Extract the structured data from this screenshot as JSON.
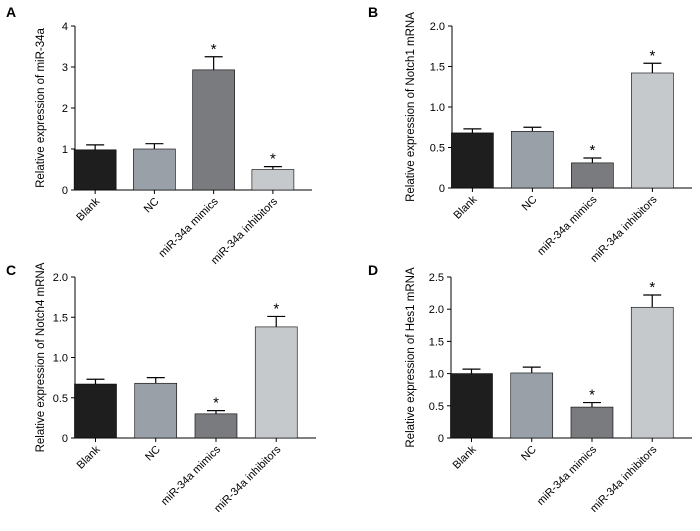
{
  "chart_data": [
    {
      "panel": "A",
      "type": "bar",
      "ylabel": "Relative expression of miR-34a",
      "categories": [
        "Blank",
        "NC",
        "miR-34a mimics",
        "miR-34a inhibitors"
      ],
      "values": [
        0.98,
        1.0,
        2.93,
        0.5
      ],
      "errors": [
        0.12,
        0.13,
        0.32,
        0.07
      ],
      "significant": [
        "",
        "",
        "*",
        "*"
      ],
      "ylim": [
        0,
        4
      ],
      "yticks": [
        "0",
        "1",
        "2",
        "3",
        "4"
      ],
      "colors": [
        "#1f1e1e",
        "#9aa0a8",
        "#7a7b7f",
        "#c6c9cc"
      ]
    },
    {
      "panel": "B",
      "type": "bar",
      "ylabel": "Relative expression of Notch1 mRNA",
      "categories": [
        "Blank",
        "NC",
        "miR-34a mimics",
        "miR-34a inhibitors"
      ],
      "values": [
        0.68,
        0.7,
        0.31,
        1.42
      ],
      "errors": [
        0.05,
        0.05,
        0.06,
        0.12
      ],
      "significant": [
        "",
        "",
        "*",
        "*"
      ],
      "ylim": [
        0,
        2
      ],
      "yticks": [
        "0",
        "0.5",
        "1.0",
        "1.5",
        "2.0"
      ],
      "colors": [
        "#1f1e1e",
        "#9aa0a8",
        "#7a7b7f",
        "#c6c9cc"
      ]
    },
    {
      "panel": "C",
      "type": "bar",
      "ylabel": "Relative expression of Notch4 mRNA",
      "categories": [
        "Blank",
        "NC",
        "miR-34a mimics",
        "miR-34a inhibitors"
      ],
      "values": [
        0.67,
        0.68,
        0.3,
        1.38
      ],
      "errors": [
        0.06,
        0.07,
        0.04,
        0.13
      ],
      "significant": [
        "",
        "",
        "*",
        "*"
      ],
      "ylim": [
        0,
        2
      ],
      "yticks": [
        "0",
        "0.5",
        "1.0",
        "1.5",
        "2.0"
      ],
      "colors": [
        "#1f1e1e",
        "#9aa0a8",
        "#7a7b7f",
        "#c6c9cc"
      ]
    },
    {
      "panel": "D",
      "type": "bar",
      "ylabel": "Relative expression of Hes1 mRNA",
      "categories": [
        "Blank",
        "NC",
        "miR-34a mimics",
        "miR-34a inhibitors"
      ],
      "values": [
        1.0,
        1.01,
        0.48,
        2.03
      ],
      "errors": [
        0.07,
        0.09,
        0.07,
        0.19
      ],
      "significant": [
        "",
        "",
        "*",
        "*"
      ],
      "ylim": [
        0,
        2.5
      ],
      "yticks": [
        "0",
        "0.5",
        "1.0",
        "1.5",
        "2.0",
        "2.5"
      ],
      "colors": [
        "#1f1e1e",
        "#9aa0a8",
        "#7a7b7f",
        "#c6c9cc"
      ]
    }
  ]
}
